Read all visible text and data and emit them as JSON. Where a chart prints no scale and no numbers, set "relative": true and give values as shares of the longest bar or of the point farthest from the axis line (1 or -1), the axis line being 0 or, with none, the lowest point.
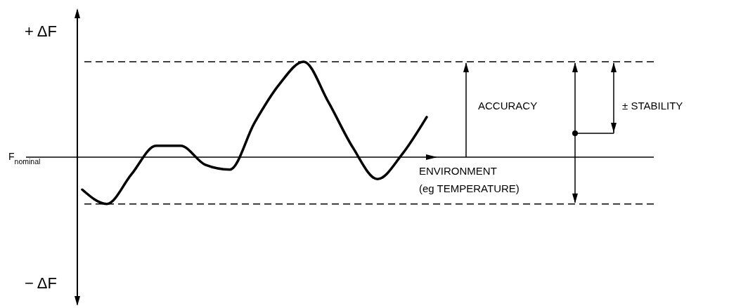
{
  "chart_data": {
    "type": "line",
    "relative": true,
    "categories": [
      null,
      null,
      null,
      null,
      null,
      null,
      null,
      null,
      null,
      null,
      null,
      null,
      null,
      null,
      null
    ],
    "values": [
      -0.34,
      -0.49,
      -0.18,
      0.12,
      0.12,
      -0.08,
      -0.13,
      0.36,
      0.76,
      1,
      0.58,
      0.1,
      -0.23,
      0.03,
      0.42
    ],
    "color": "#000000",
    "line_style": "solid",
    "marker": "none",
    "xlabel": "ENVIRONMENT\n(eg TEMPERATURE)",
    "ylabel": "F$_{nominal}$",
    "ref_lines": [
      {
        "axis": "y",
        "value": 1,
        "color": "#000000",
        "line_style": "dashed"
      },
      {
        "axis": "y",
        "value": -0.49,
        "color": "#000000",
        "line_style": "dashed"
      }
    ],
    "annotations": [
      "+ ΔF",
      "− ΔF",
      "ACCURACY",
      "± STABILITY"
    ]
  }
}
